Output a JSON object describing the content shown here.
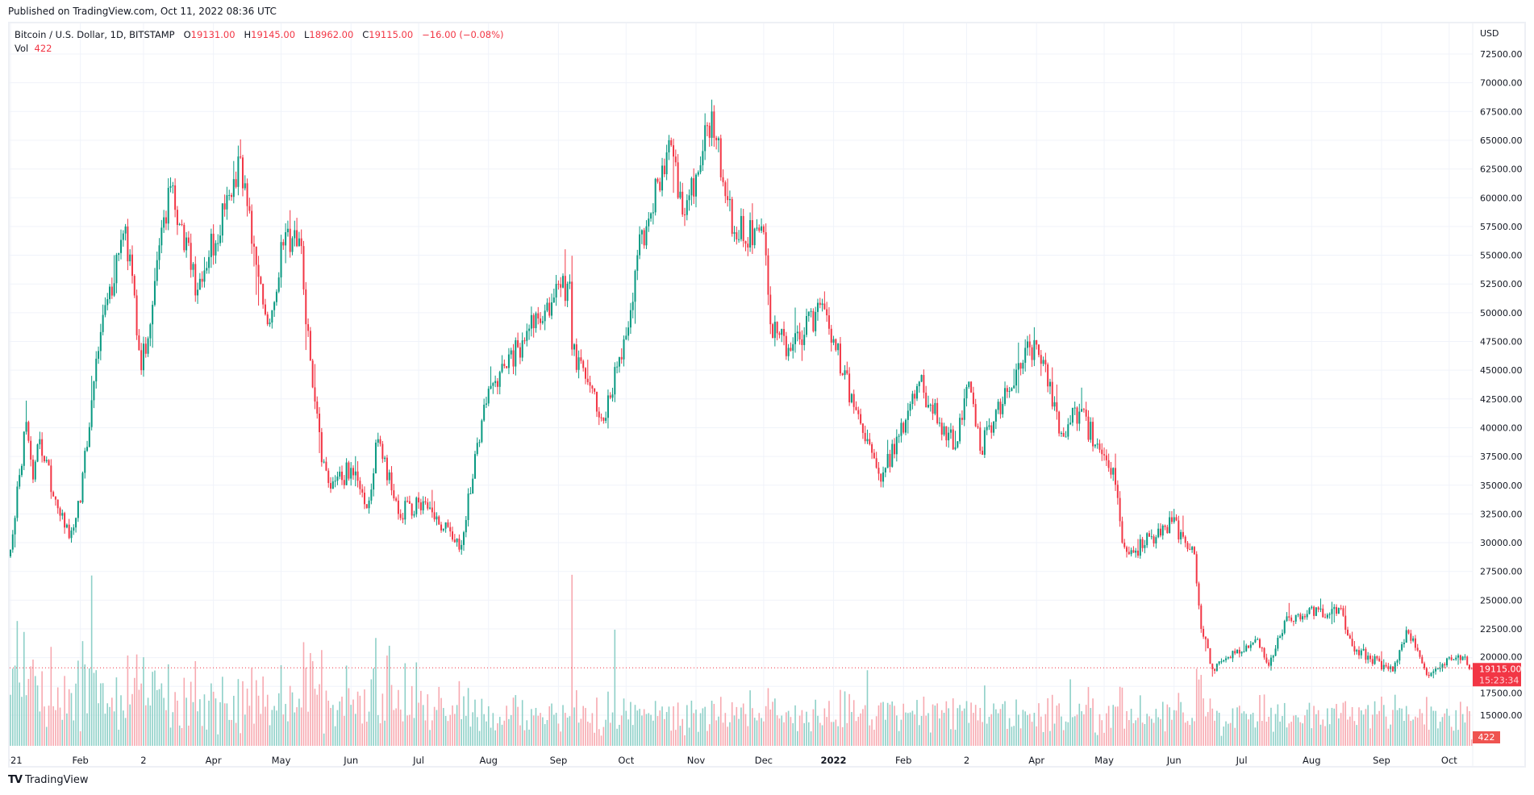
{
  "published": "Published on TradingView.com, Oct 11, 2022 08:36 UTC",
  "legend": {
    "symbol": "Bitcoin / U.S. Dollar, 1D, BITSTAMP",
    "o_label": "O",
    "o": "19131.00",
    "h_label": "H",
    "h": "19145.00",
    "l_label": "L",
    "l": "18962.00",
    "c_label": "C",
    "c": "19115.00",
    "change": "−16.00 (−0.08%)",
    "vol_label": "Vol",
    "vol": "422"
  },
  "footer": {
    "brand": "TradingView"
  },
  "colors": {
    "up": "#089981",
    "down": "#f23645",
    "grid": "#f0f3fa",
    "up_vol": "#8ed0c8",
    "down_vol": "#f7a9b0"
  },
  "chart_data": {
    "type": "candlestick",
    "title": "Bitcoin / U.S. Dollar, 1D, BITSTAMP",
    "currency": "USD",
    "ylim": [
      13500,
      74000
    ],
    "y_ticks": [
      15000,
      17500,
      20000,
      22500,
      25000,
      27500,
      30000,
      32500,
      35000,
      37500,
      40000,
      42500,
      45000,
      47500,
      50000,
      52500,
      55000,
      57500,
      60000,
      62500,
      65000,
      67500,
      70000,
      72500
    ],
    "x_ticks": [
      {
        "date": "2021-01-01",
        "label": "2021"
      },
      {
        "date": "2021-02-01",
        "label": "Feb"
      },
      {
        "date": "2021-03-01",
        "label": "2"
      },
      {
        "date": "2021-04-01",
        "label": "Apr"
      },
      {
        "date": "2021-05-01",
        "label": "May"
      },
      {
        "date": "2021-06-01",
        "label": "Jun"
      },
      {
        "date": "2021-07-01",
        "label": "Jul"
      },
      {
        "date": "2021-08-01",
        "label": "Aug"
      },
      {
        "date": "2021-09-01",
        "label": "Sep"
      },
      {
        "date": "2021-10-01",
        "label": "Oct"
      },
      {
        "date": "2021-11-01",
        "label": "Nov"
      },
      {
        "date": "2021-12-01",
        "label": "Dec"
      },
      {
        "date": "2022-01-01",
        "label": "2022"
      },
      {
        "date": "2022-02-01",
        "label": "Feb"
      },
      {
        "date": "2022-03-01",
        "label": "2"
      },
      {
        "date": "2022-04-01",
        "label": "Apr"
      },
      {
        "date": "2022-05-01",
        "label": "May"
      },
      {
        "date": "2022-06-01",
        "label": "Jun"
      },
      {
        "date": "2022-07-01",
        "label": "Jul"
      },
      {
        "date": "2022-08-01",
        "label": "Aug"
      },
      {
        "date": "2022-09-01",
        "label": "Sep"
      },
      {
        "date": "2022-10-01",
        "label": "Oct"
      }
    ],
    "close_path": [
      [
        "2021-01-01",
        29400
      ],
      [
        "2021-01-08",
        40500
      ],
      [
        "2021-01-11",
        35500
      ],
      [
        "2021-01-14",
        39000
      ],
      [
        "2021-01-22",
        33000
      ],
      [
        "2021-01-27",
        30400
      ],
      [
        "2021-02-01",
        33500
      ],
      [
        "2021-02-08",
        46000
      ],
      [
        "2021-02-21",
        57500
      ],
      [
        "2021-02-28",
        45000
      ],
      [
        "2021-03-13",
        61000
      ],
      [
        "2021-03-25",
        52000
      ],
      [
        "2021-04-13",
        63500
      ],
      [
        "2021-04-18",
        56000
      ],
      [
        "2021-04-25",
        49000
      ],
      [
        "2021-05-03",
        57000
      ],
      [
        "2021-05-10",
        55800
      ],
      [
        "2021-05-12",
        49000
      ],
      [
        "2021-05-19",
        37000
      ],
      [
        "2021-05-23",
        34700
      ],
      [
        "2021-06-01",
        36500
      ],
      [
        "2021-06-08",
        33000
      ],
      [
        "2021-06-13",
        39000
      ],
      [
        "2021-06-22",
        32500
      ],
      [
        "2021-07-01",
        33500
      ],
      [
        "2021-07-20",
        29800
      ],
      [
        "2021-07-30",
        42000
      ],
      [
        "2021-08-14",
        47000
      ],
      [
        "2021-08-23",
        49500
      ],
      [
        "2021-09-06",
        52700
      ],
      [
        "2021-09-07",
        46800
      ],
      [
        "2021-09-21",
        40600
      ],
      [
        "2021-10-01",
        48000
      ],
      [
        "2021-10-06",
        55000
      ],
      [
        "2021-10-20",
        65000
      ],
      [
        "2021-10-27",
        58500
      ],
      [
        "2021-11-08",
        67500
      ],
      [
        "2021-11-10",
        65000
      ],
      [
        "2021-11-18",
        57000
      ],
      [
        "2021-12-01",
        57000
      ],
      [
        "2021-12-04",
        49000
      ],
      [
        "2021-12-13",
        46700
      ],
      [
        "2021-12-27",
        50800
      ],
      [
        "2022-01-01",
        47700
      ],
      [
        "2022-01-10",
        41800
      ],
      [
        "2022-01-21",
        36000
      ],
      [
        "2022-01-24",
        36500
      ],
      [
        "2022-02-08",
        44000
      ],
      [
        "2022-02-13",
        42000
      ],
      [
        "2022-02-24",
        38300
      ],
      [
        "2022-03-02",
        44000
      ],
      [
        "2022-03-07",
        38000
      ],
      [
        "2022-03-28",
        47500
      ],
      [
        "2022-04-05",
        45500
      ],
      [
        "2022-04-11",
        39500
      ],
      [
        "2022-04-20",
        41400
      ],
      [
        "2022-04-30",
        37700
      ],
      [
        "2022-05-05",
        36500
      ],
      [
        "2022-05-09",
        30000
      ],
      [
        "2022-05-12",
        29000
      ],
      [
        "2022-05-31",
        31800
      ],
      [
        "2022-06-10",
        29000
      ],
      [
        "2022-06-13",
        22500
      ],
      [
        "2022-06-18",
        19000
      ],
      [
        "2022-07-08",
        21600
      ],
      [
        "2022-07-13",
        19300
      ],
      [
        "2022-07-20",
        23200
      ],
      [
        "2022-07-30",
        23800
      ],
      [
        "2022-08-14",
        24300
      ],
      [
        "2022-08-19",
        21000
      ],
      [
        "2022-09-06",
        18800
      ],
      [
        "2022-09-12",
        22400
      ],
      [
        "2022-09-19",
        19500
      ],
      [
        "2022-09-21",
        18500
      ],
      [
        "2022-10-05",
        20200
      ],
      [
        "2022-10-11",
        19115
      ]
    ],
    "last_price": "19115.00",
    "countdown": "15:23:34",
    "last_volume": "422"
  }
}
